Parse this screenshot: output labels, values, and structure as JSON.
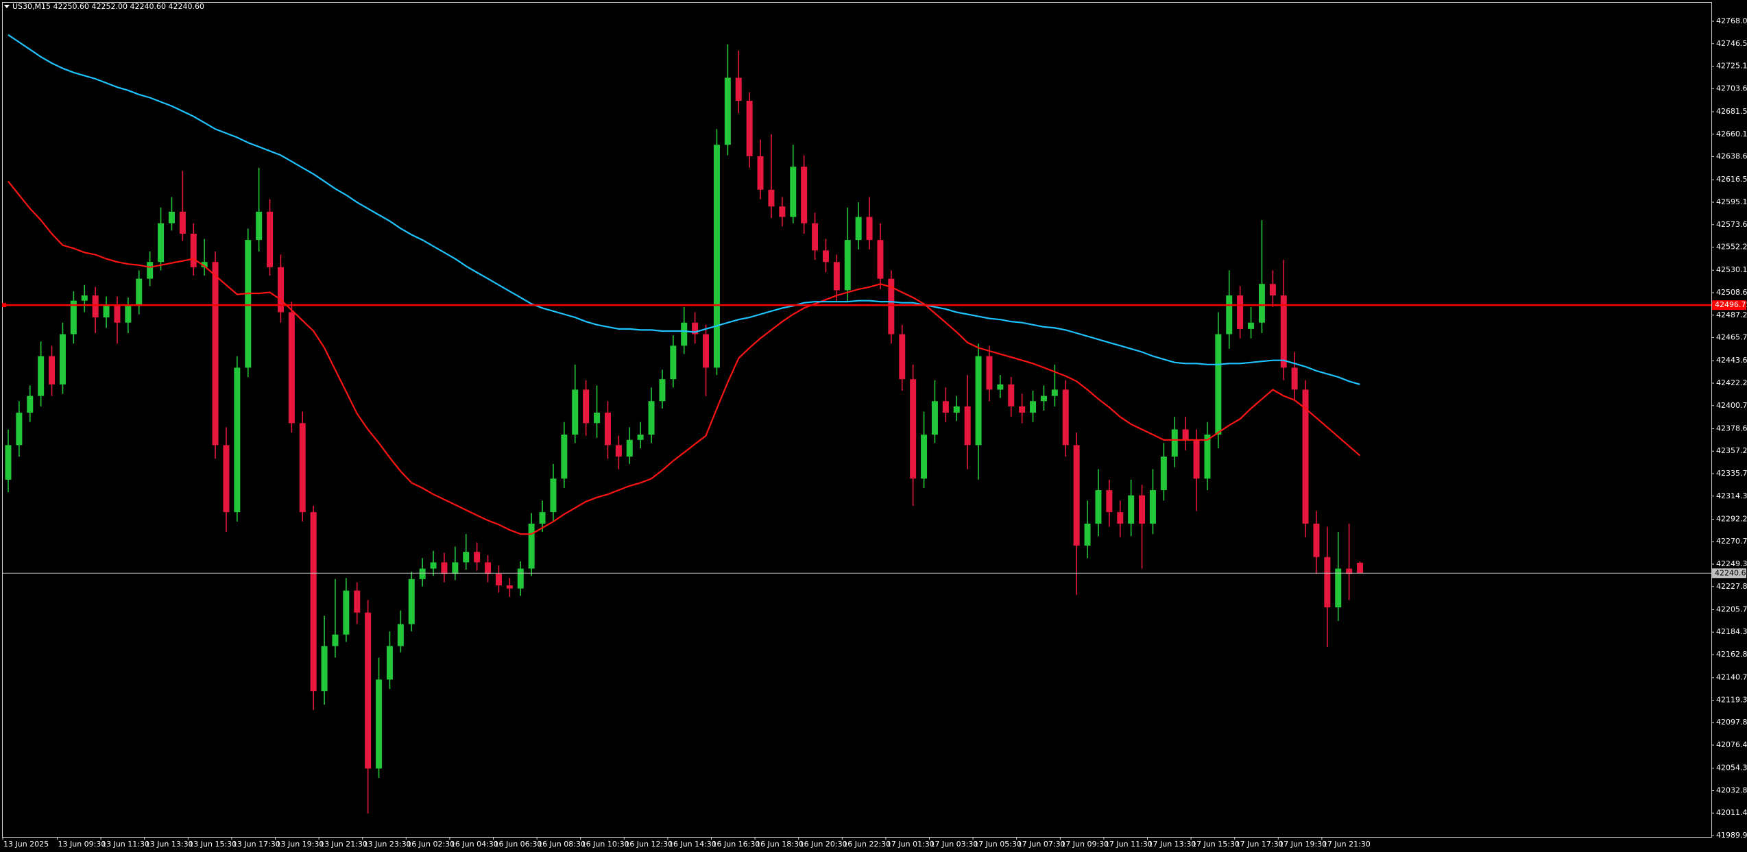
{
  "chart_data": {
    "type": "candlestick",
    "title": "US30,M15  42250.60 42252.00 42240.60 42240.60",
    "categories": [
      "13 Jun 2025",
      null,
      null,
      null,
      null,
      "13 Jun 09:30",
      null,
      null,
      null,
      "13 Jun 11:30",
      null,
      null,
      null,
      "13 Jun 13:30",
      null,
      null,
      null,
      "13 Jun 15:30",
      null,
      null,
      null,
      "13 Jun 17:30",
      null,
      null,
      null,
      "13 Jun 19:30",
      null,
      null,
      null,
      "13 Jun 21:30",
      null,
      null,
      null,
      "13 Jun 23:30",
      null,
      null,
      null,
      "16 Jun 02:30",
      null,
      null,
      null,
      "16 Jun 04:30",
      null,
      null,
      null,
      "16 Jun 06:30",
      null,
      null,
      null,
      "16 Jun 08:30",
      null,
      null,
      null,
      "16 Jun 10:30",
      null,
      null,
      null,
      "16 Jun 12:30",
      null,
      null,
      null,
      "16 Jun 14:30",
      null,
      null,
      null,
      "16 Jun 16:30",
      null,
      null,
      null,
      "16 Jun 18:30",
      null,
      null,
      null,
      "16 Jun 20:30",
      null,
      null,
      null,
      "16 Jun 22:30",
      null,
      null,
      null,
      "17 Jun 01:30",
      null,
      null,
      null,
      "17 Jun 03:30",
      null,
      null,
      null,
      "17 Jun 05:30",
      null,
      null,
      null,
      "17 Jun 07:30",
      null,
      null,
      null,
      "17 Jun 09:30",
      null,
      null,
      null,
      "17 Jun 11:30",
      null,
      null,
      null,
      "17 Jun 13:30",
      null,
      null,
      null,
      "17 Jun 15:30",
      null,
      null,
      null,
      "17 Jun 17:30",
      null,
      null,
      null,
      "17 Jun 19:30",
      null,
      null,
      null,
      "17 Jun 21:30",
      null,
      null,
      null
    ],
    "open": [
      42330,
      42363,
      42394,
      42410,
      42448,
      42421,
      42469,
      42501,
      42506,
      42485,
      42496,
      42480,
      42496,
      42522,
      42538,
      42575,
      42586,
      42565,
      42533,
      42538,
      42363,
      42299,
      42437,
      42559,
      42586,
      42533,
      42490,
      42384,
      42299,
      42128,
      42171,
      42182,
      42224,
      42203,
      42054,
      42139,
      42171,
      42192,
      42235,
      42245,
      42251,
      42240,
      42251,
      42261,
      42251,
      42240,
      42229,
      42226,
      42245,
      42288,
      42299,
      42331,
      42373,
      42416,
      42384,
      42394,
      42363,
      42352,
      42368,
      42373,
      42405,
      42426,
      42458,
      42480,
      42469,
      42437,
      42650,
      42714,
      42692,
      42639,
      42607,
      42591,
      42581,
      42629,
      42575,
      42549,
      42538,
      42511,
      42559,
      42581,
      42559,
      42522,
      42469,
      42426,
      42331,
      42373,
      42405,
      42394,
      42400,
      42363,
      42448,
      42416,
      42421,
      42400,
      42394,
      42405,
      42410,
      42416,
      42363,
      42267,
      42288,
      42320,
      42299,
      42288,
      42315,
      42288,
      42320,
      42352,
      42378,
      42368,
      42331,
      42373,
      42469,
      42506,
      42474,
      42480,
      42517,
      42506,
      42437,
      42416,
      42288,
      42256,
      42208,
      42245,
      42250.6
    ],
    "high": [
      42378,
      42405,
      42420,
      42462,
      42458,
      42480,
      42510,
      42516,
      42514,
      42505,
      42505,
      42504,
      42530,
      42548,
      42590,
      42600,
      42625,
      42575,
      42560,
      42548,
      42380,
      42448,
      42570,
      42628,
      42598,
      42545,
      42500,
      42395,
      42305,
      42200,
      42235,
      42236,
      42232,
      42215,
      42160,
      42185,
      42205,
      42242,
      42255,
      42262,
      42260,
      42266,
      42278,
      42270,
      42258,
      42248,
      42236,
      42252,
      42298,
      42310,
      42345,
      42385,
      42440,
      42425,
      42420,
      42405,
      42372,
      42380,
      42385,
      42418,
      42435,
      42468,
      42495,
      42490,
      42478,
      42665,
      42746,
      42740,
      42700,
      42655,
      42660,
      42600,
      42650,
      42640,
      42585,
      42560,
      42545,
      42590,
      42595,
      42600,
      42575,
      42530,
      42478,
      42440,
      42395,
      42425,
      42418,
      42410,
      42430,
      42460,
      42458,
      42430,
      42428,
      42412,
      42415,
      42420,
      42440,
      42425,
      42375,
      42310,
      42340,
      42330,
      42310,
      42330,
      42325,
      42340,
      42365,
      42390,
      42390,
      42378,
      42385,
      42490,
      42530,
      42515,
      42495,
      42578,
      42530,
      42540,
      42452,
      42425,
      42300,
      42285,
      42280,
      42288,
      42252
    ],
    "low": [
      42318,
      42352,
      42385,
      42400,
      42410,
      42412,
      42460,
      42490,
      42470,
      42475,
      42460,
      42470,
      42488,
      42515,
      42530,
      42568,
      42558,
      42525,
      42525,
      42350,
      42280,
      42290,
      42428,
      42548,
      42525,
      42480,
      42375,
      42290,
      42110,
      42115,
      42160,
      42175,
      42192,
      42011,
      42045,
      42130,
      42165,
      42185,
      42228,
      42238,
      42232,
      42234,
      42244,
      42243,
      42232,
      42222,
      42218,
      42219,
      42238,
      42280,
      42290,
      42322,
      42365,
      42372,
      42370,
      42350,
      42340,
      42345,
      42360,
      42365,
      42398,
      42418,
      42450,
      42460,
      42410,
      42430,
      42640,
      42680,
      42628,
      42598,
      42580,
      42572,
      42575,
      42565,
      42540,
      42528,
      42500,
      42500,
      42550,
      42550,
      42512,
      42460,
      42415,
      42305,
      42322,
      42365,
      42385,
      42386,
      42340,
      42330,
      42405,
      42408,
      42390,
      42384,
      42385,
      42396,
      42400,
      42352,
      42220,
      42255,
      42276,
      42285,
      42275,
      42276,
      42245,
      42278,
      42310,
      42342,
      42358,
      42300,
      42320,
      42360,
      42455,
      42465,
      42465,
      42470,
      42495,
      42425,
      42405,
      42275,
      42240,
      42170,
      42195,
      42215,
      42240.6
    ],
    "close": [
      42363,
      42394,
      42410,
      42448,
      42421,
      42469,
      42501,
      42506,
      42485,
      42496,
      42480,
      42496,
      42522,
      42538,
      42575,
      42586,
      42565,
      42533,
      42538,
      42363,
      42299,
      42437,
      42559,
      42586,
      42533,
      42490,
      42384,
      42299,
      42128,
      42171,
      42182,
      42224,
      42203,
      42054,
      42139,
      42171,
      42192,
      42235,
      42245,
      42251,
      42240,
      42251,
      42261,
      42251,
      42240,
      42229,
      42226,
      42245,
      42288,
      42299,
      42331,
      42373,
      42416,
      42384,
      42394,
      42363,
      42352,
      42368,
      42373,
      42405,
      42426,
      42458,
      42480,
      42469,
      42437,
      42650,
      42714,
      42692,
      42639,
      42607,
      42591,
      42581,
      42629,
      42575,
      42549,
      42538,
      42511,
      42559,
      42581,
      42559,
      42522,
      42469,
      42426,
      42331,
      42373,
      42405,
      42394,
      42400,
      42363,
      42448,
      42416,
      42421,
      42400,
      42394,
      42405,
      42410,
      42416,
      42363,
      42267,
      42288,
      42320,
      42299,
      42288,
      42315,
      42288,
      42320,
      42352,
      42378,
      42368,
      42331,
      42373,
      42469,
      42506,
      42474,
      42480,
      42517,
      42506,
      42437,
      42416,
      42288,
      42256,
      42208,
      42245,
      42240,
      42240.6
    ],
    "bull_color": "#22c83a",
    "bear_color": "#e8173d",
    "lines": [
      {
        "color": "#ff1414",
        "values": [
          42615,
          42602,
          42589,
          42578,
          42565,
          42554,
          42551,
          42547,
          42545,
          42541,
          42538,
          42536,
          42535,
          42533,
          42535,
          42537,
          42539,
          42541,
          42534,
          42525,
          42516,
          42507,
          42508,
          42508,
          42509,
          42502,
          42492,
          42482,
          42472,
          42456,
          42435,
          42414,
          42393,
          42378,
          42365,
          42351,
          42338,
          42327,
          42322,
          42316,
          42311,
          42306,
          42301,
          42296,
          42291,
          42287,
          42282,
          42278,
          42278,
          42284,
          42290,
          42297,
          42303,
          42309,
          42313,
          42316,
          42320,
          42324,
          42327,
          42331,
          42339,
          42348,
          42356,
          42364,
          42372,
          42398,
          42423,
          42446,
          42456,
          42465,
          42473,
          42481,
          42488,
          42494,
          42498,
          42502,
          42506,
          42509,
          42512,
          42514,
          42517,
          42514,
          42509,
          42504,
          42498,
          42489,
          42480,
          42471,
          42461,
          42456,
          42453,
          42450,
          42447,
          42444,
          42441,
          42437,
          42433,
          42429,
          42424,
          42416,
          42407,
          42399,
          42390,
          42383,
          42378,
          42373,
          42368,
          42368,
          42368,
          42368,
          42368,
          42375,
          42382,
          42388,
          42398,
          42407,
          42416,
          42410,
          42406,
          42398,
          42389,
          42380,
          42371,
          42362,
          42353
        ]
      },
      {
        "color": "#1ec4ff",
        "values": [
          42755,
          42748,
          42741,
          42734,
          42728,
          42723,
          42719,
          42716,
          42713,
          42709,
          42705,
          42702,
          42698,
          42695,
          42691,
          42687,
          42682,
          42677,
          42671,
          42665,
          42661,
          42657,
          42652,
          42648,
          42644,
          42640,
          42634,
          42628,
          42622,
          42615,
          42608,
          42602,
          42595,
          42589,
          42583,
          42577,
          42570,
          42564,
          42559,
          42553,
          42547,
          42541,
          42534,
          42528,
          42522,
          42516,
          42510,
          42504,
          42498,
          42494,
          42491,
          42488,
          42485,
          42481,
          42478,
          42476,
          42474,
          42474,
          42473,
          42473,
          42472,
          42472,
          42472,
          42471,
          42474,
          42477,
          42480,
          42483,
          42485,
          42488,
          42491,
          42494,
          42496,
          42499,
          42500,
          42500,
          42500,
          42500,
          42501,
          42501,
          42500,
          42500,
          42499,
          42499,
          42497,
          42495,
          42493,
          42490,
          42488,
          42486,
          42484,
          42483,
          42481,
          42480,
          42478,
          42476,
          42475,
          42473,
          42470,
          42467,
          42464,
          42461,
          42458,
          42455,
          42452,
          42448,
          42445,
          42442,
          42441,
          42441,
          42440,
          42440,
          42441,
          42441,
          42442,
          42443,
          42444,
          42444,
          42441,
          42438,
          42434,
          42431,
          42428,
          42424,
          42421
        ]
      }
    ],
    "hlines": [
      {
        "value": 42496.75,
        "label": "42496.75",
        "color": "#ff0000"
      },
      {
        "value": 42240.6,
        "label": "42240.60",
        "color": "#c0c0c0"
      }
    ],
    "ylim": [
      41989.95,
      42768.0
    ],
    "yticks": [
      {
        "value": 42768.0,
        "label": "42768.00"
      },
      {
        "value": 42746.55,
        "label": "42746.55"
      },
      {
        "value": 42725.1,
        "label": "42725.10"
      },
      {
        "value": 42703.65,
        "label": "42703.65"
      },
      {
        "value": 42681.55,
        "label": "42681.55"
      },
      {
        "value": 42660.1,
        "label": "42660.10"
      },
      {
        "value": 42638.65,
        "label": "42638.65"
      },
      {
        "value": 42616.55,
        "label": "42616.55"
      },
      {
        "value": 42595.1,
        "label": "42595.10"
      },
      {
        "value": 42573.65,
        "label": "42573.65"
      },
      {
        "value": 42552.2,
        "label": "42552.20"
      },
      {
        "value": 42530.1,
        "label": "42530.10"
      },
      {
        "value": 42508.65,
        "label": "42508.65"
      },
      {
        "value": 42487.2,
        "label": "42487.20"
      },
      {
        "value": 42465.75,
        "label": "42465.75"
      },
      {
        "value": 42443.65,
        "label": "42443.65"
      },
      {
        "value": 42422.2,
        "label": "42422.20"
      },
      {
        "value": 42400.75,
        "label": "42400.75"
      },
      {
        "value": 42378.65,
        "label": "42378.65"
      },
      {
        "value": 42357.2,
        "label": "42357.20"
      },
      {
        "value": 42335.75,
        "label": "42335.75"
      },
      {
        "value": 42314.3,
        "label": "42314.30"
      },
      {
        "value": 42292.2,
        "label": "42292.20"
      },
      {
        "value": 42270.75,
        "label": "42270.75"
      },
      {
        "value": 42249.3,
        "label": "42249.30"
      },
      {
        "value": 42227.85,
        "label": "42227.85"
      },
      {
        "value": 42205.75,
        "label": "42205.75"
      },
      {
        "value": 42184.3,
        "label": "42184.30"
      },
      {
        "value": 42162.85,
        "label": "42162.85"
      },
      {
        "value": 42140.75,
        "label": "42140.75"
      },
      {
        "value": 42119.3,
        "label": "42119.30"
      },
      {
        "value": 42097.85,
        "label": "42097.85"
      },
      {
        "value": 42076.4,
        "label": "42076.40"
      },
      {
        "value": 42054.3,
        "label": "42054.30"
      },
      {
        "value": 42032.85,
        "label": "42032.85"
      },
      {
        "value": 42011.4,
        "label": "42011.40"
      },
      {
        "value": 41989.95,
        "label": "41989.95"
      }
    ]
  }
}
